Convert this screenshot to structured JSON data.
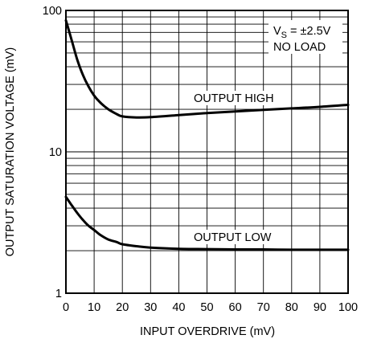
{
  "chart_data": {
    "type": "line",
    "xlabel": "INPUT OVERDRIVE (mV)",
    "ylabel": "OUTPUT SATURATION VOLTAGE (mV)",
    "xlim": [
      0,
      100
    ],
    "ylim": [
      1,
      100
    ],
    "y_scale": "log",
    "grid": true,
    "x_ticks": [
      0,
      10,
      20,
      30,
      40,
      50,
      60,
      70,
      80,
      90,
      100
    ],
    "y_tick_labels": [
      {
        "value": 1,
        "label": "1"
      },
      {
        "value": 10,
        "label": "10"
      },
      {
        "value": 100,
        "label": "100"
      }
    ],
    "annotations": {
      "condition_prefix": "V",
      "condition_subscript": "S",
      "condition_value": " = ±2.5V",
      "load": "NO LOAD"
    },
    "series": [
      {
        "name": "OUTPUT HIGH",
        "x": [
          0,
          2,
          4,
          6,
          8,
          10,
          12,
          15,
          18,
          20,
          25,
          30,
          40,
          50,
          60,
          70,
          80,
          90,
          100
        ],
        "y": [
          85,
          62,
          45,
          35,
          29,
          25,
          22.5,
          20,
          18.5,
          17.8,
          17.5,
          17.6,
          18.2,
          18.8,
          19.3,
          19.8,
          20.3,
          20.8,
          21.5
        ]
      },
      {
        "name": "OUTPUT LOW",
        "x": [
          0,
          2,
          4,
          6,
          8,
          10,
          12,
          15,
          18,
          20,
          25,
          30,
          40,
          50,
          60,
          70,
          80,
          90,
          100
        ],
        "y": [
          4.8,
          4.2,
          3.7,
          3.3,
          3.0,
          2.8,
          2.6,
          2.4,
          2.3,
          2.22,
          2.15,
          2.1,
          2.06,
          2.05,
          2.04,
          2.04,
          2.03,
          2.03,
          2.03
        ]
      }
    ]
  }
}
